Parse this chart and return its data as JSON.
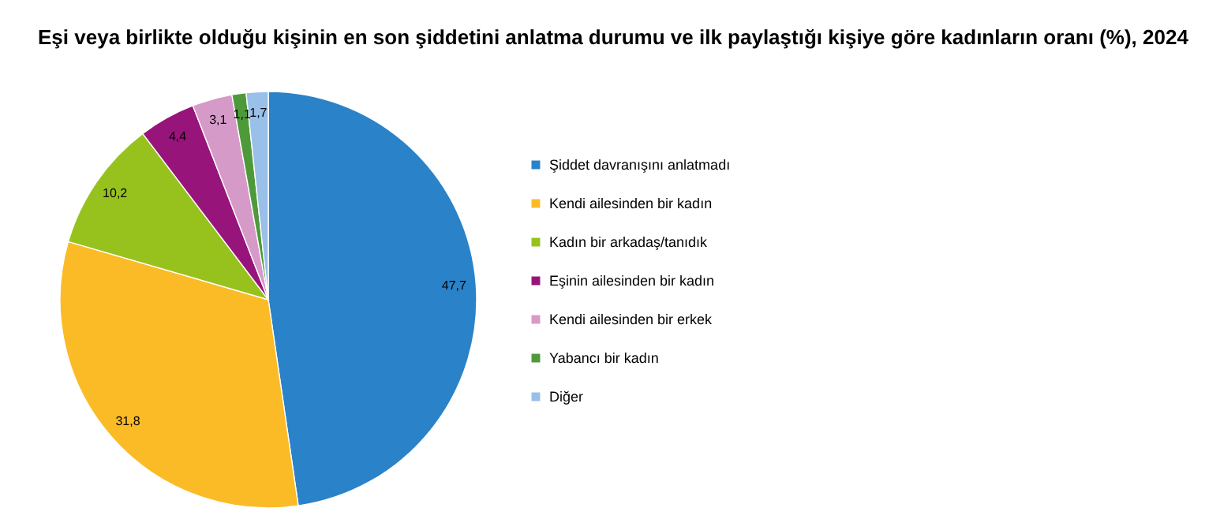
{
  "chart_data": {
    "type": "pie",
    "title": "Eşi veya birlikte olduğu kişinin en son şiddetini anlatma durumu ve ilk paylaştığı kişiye göre kadınların oranı (%), 2024",
    "categories": [
      "Şiddet davranışını anlatmadı",
      "Kendi ailesinden bir kadın",
      "Kadın bir arkadaş/tanıdık",
      "Eşinin ailesinden bir kadın",
      "Kendi ailesinden bir erkek",
      "Yabancı bir kadın",
      "Diğer"
    ],
    "values": [
      47.7,
      31.8,
      10.2,
      4.4,
      3.1,
      1.1,
      1.7
    ],
    "colors": [
      "#2a82c9",
      "#fbbb27",
      "#97c21e",
      "#97157a",
      "#d69ac9",
      "#4e9a3a",
      "#99c0e8"
    ],
    "value_labels": [
      "47,7",
      "31,8",
      "10,2",
      "4,4",
      "3,1",
      "1,1",
      "1,7"
    ],
    "legend": "right"
  }
}
